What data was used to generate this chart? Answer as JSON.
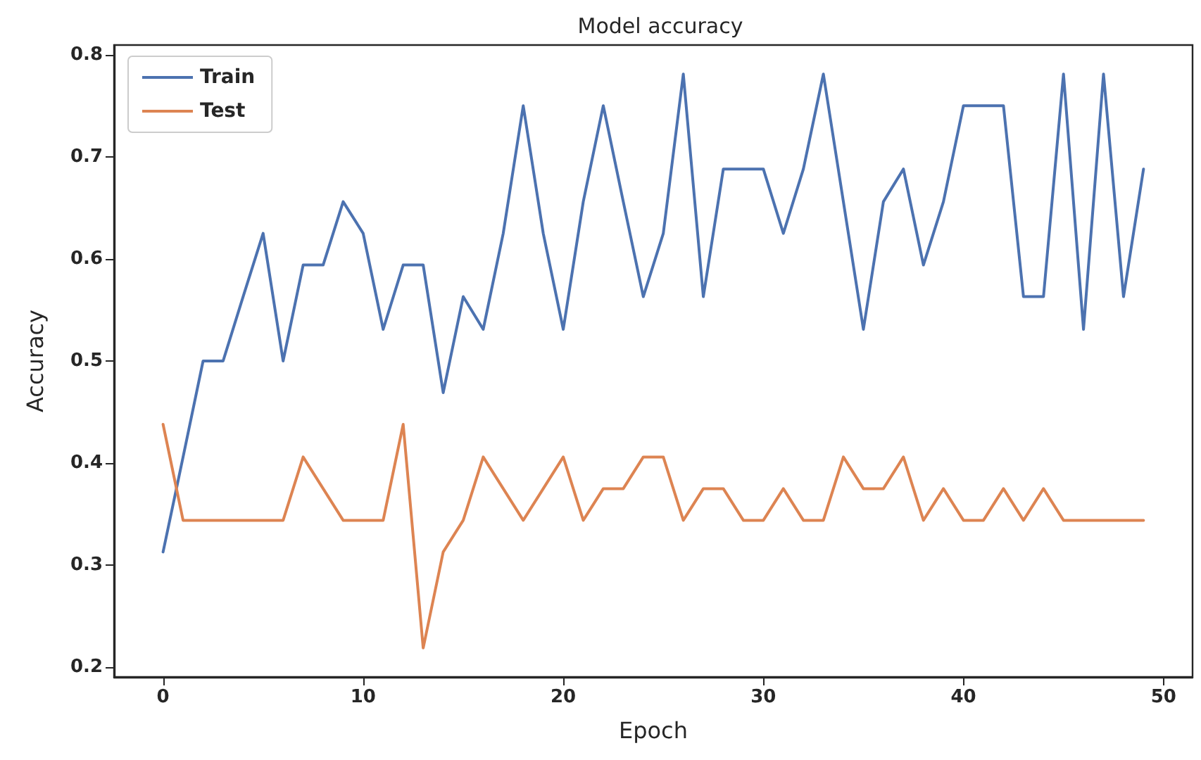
{
  "chart_data": {
    "type": "line",
    "title": "Model accuracy",
    "xlabel": "Epoch",
    "ylabel": "Accuracy",
    "x": [
      0,
      1,
      2,
      3,
      4,
      5,
      6,
      7,
      8,
      9,
      10,
      11,
      12,
      13,
      14,
      15,
      16,
      17,
      18,
      19,
      20,
      21,
      22,
      23,
      24,
      25,
      26,
      27,
      28,
      29,
      30,
      31,
      32,
      33,
      34,
      35,
      36,
      37,
      38,
      39,
      40,
      41,
      42,
      43,
      44,
      45,
      46,
      47,
      48,
      49
    ],
    "series": [
      {
        "name": "Train",
        "color": "#4c72b0",
        "values": [
          0.313,
          0.406,
          0.5,
          0.5,
          0.563,
          0.625,
          0.5,
          0.594,
          0.594,
          0.656,
          0.625,
          0.531,
          0.594,
          0.594,
          0.469,
          0.563,
          0.531,
          0.625,
          0.75,
          0.625,
          0.531,
          0.656,
          0.75,
          0.656,
          0.563,
          0.625,
          0.781,
          0.563,
          0.688,
          0.688,
          0.688,
          0.625,
          0.688,
          0.781,
          0.656,
          0.531,
          0.656,
          0.688,
          0.594,
          0.656,
          0.75,
          0.75,
          0.75,
          0.563,
          0.563,
          0.781,
          0.531,
          0.781,
          0.563,
          0.688
        ]
      },
      {
        "name": "Test",
        "color": "#dd8452",
        "values": [
          0.438,
          0.344,
          0.344,
          0.344,
          0.344,
          0.344,
          0.344,
          0.406,
          0.375,
          0.344,
          0.344,
          0.344,
          0.438,
          0.219,
          0.313,
          0.344,
          0.406,
          0.375,
          0.344,
          0.375,
          0.406,
          0.344,
          0.375,
          0.375,
          0.406,
          0.406,
          0.344,
          0.375,
          0.375,
          0.344,
          0.344,
          0.375,
          0.344,
          0.344,
          0.406,
          0.375,
          0.375,
          0.406,
          0.344,
          0.375,
          0.344,
          0.344,
          0.375,
          0.344,
          0.375,
          0.344,
          0.344,
          0.344,
          0.344,
          0.344
        ]
      }
    ],
    "xlim": [
      -2.45,
      51.45
    ],
    "ylim": [
      0.1906,
      0.8094
    ],
    "xticks": [
      0,
      10,
      20,
      30,
      40,
      50
    ],
    "yticks": [
      0.2,
      0.3,
      0.4,
      0.5,
      0.6,
      0.7,
      0.8
    ],
    "grid": false,
    "legend": "top left",
    "marker": "none",
    "line_style": "solid"
  }
}
